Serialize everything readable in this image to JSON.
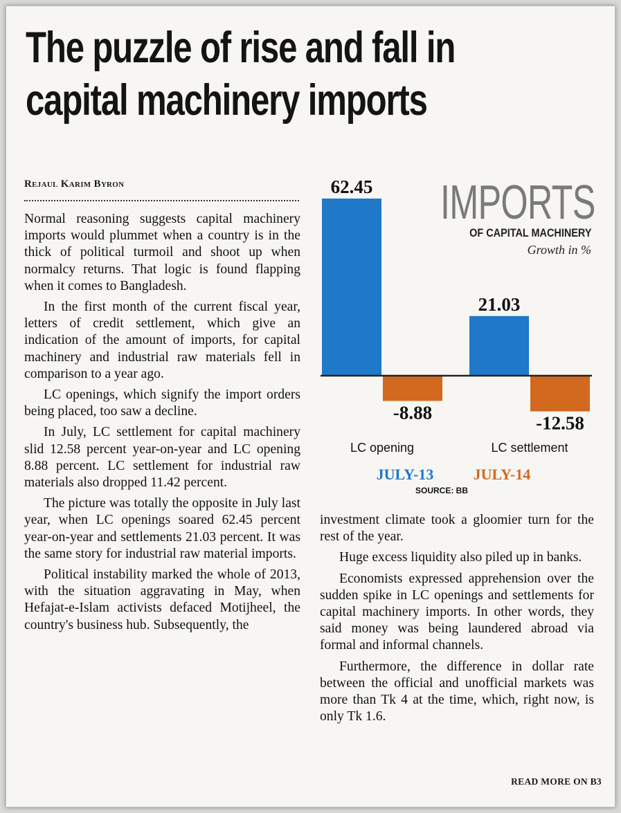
{
  "article": {
    "headline_line1": "The puzzle of rise and fall in",
    "headline_line2": "capital machinery imports",
    "byline": "Rejaul Karim Byron",
    "read_more": "READ MORE ON B3",
    "col1": [
      "Normal reasoning suggests capital machinery imports would plummet when a country is in the thick of political turmoil and shoot up when normalcy returns. That logic is found flapping when it comes to Bangladesh.",
      "In the first month of the current fiscal year, letters of credit settlement, which give an indication of the amount of imports, for capital machinery and industrial raw materials fell in comparison to a year ago.",
      "LC openings, which signify the import orders being placed, too saw a decline.",
      "In July, LC settlement for capital machinery slid 12.58 percent year-on-year and LC opening 8.88 percent. LC settlement for industrial raw materials also dropped 11.42 percent.",
      "The picture was totally the opposite in July last year, when LC openings soared 62.45 percent year-on-year and settlements 21.03 percent. It was the same story for industrial raw material imports.",
      "Political instability marked the whole of 2013, with the situation aggravating in May, when Hefajat-e-Islam activists defaced Motijheel, the country's business hub. Subsequently, the"
    ],
    "col2": [
      "investment climate took a gloomier turn for the rest of the year.",
      "Huge excess liquidity also piled up in banks.",
      "Economists expressed apprehension over the sudden spike in LC openings and settlements for capital machinery imports. In other words, they said money was being laundered abroad via formal and informal channels.",
      "Furthermore, the difference in dollar rate between the official and unofficial markets was more than Tk 4 at the time, which, right now, is only Tk 1.6."
    ]
  },
  "chart_data": {
    "type": "bar",
    "title": "IMPORTS",
    "subtitle": "OF CAPITAL MACHINERY",
    "unit": "Growth in %",
    "categories": [
      "LC opening",
      "LC settlement"
    ],
    "series": [
      {
        "name": "JULY-13",
        "color": "#1f78c8",
        "values": [
          62.45,
          21.03
        ]
      },
      {
        "name": "JULY-14",
        "color": "#d2691e",
        "values": [
          -8.88,
          -12.58
        ]
      }
    ],
    "data_labels": [
      "62.45",
      "-8.88",
      "21.03",
      "-12.58"
    ],
    "source": "SOURCE: BB"
  }
}
